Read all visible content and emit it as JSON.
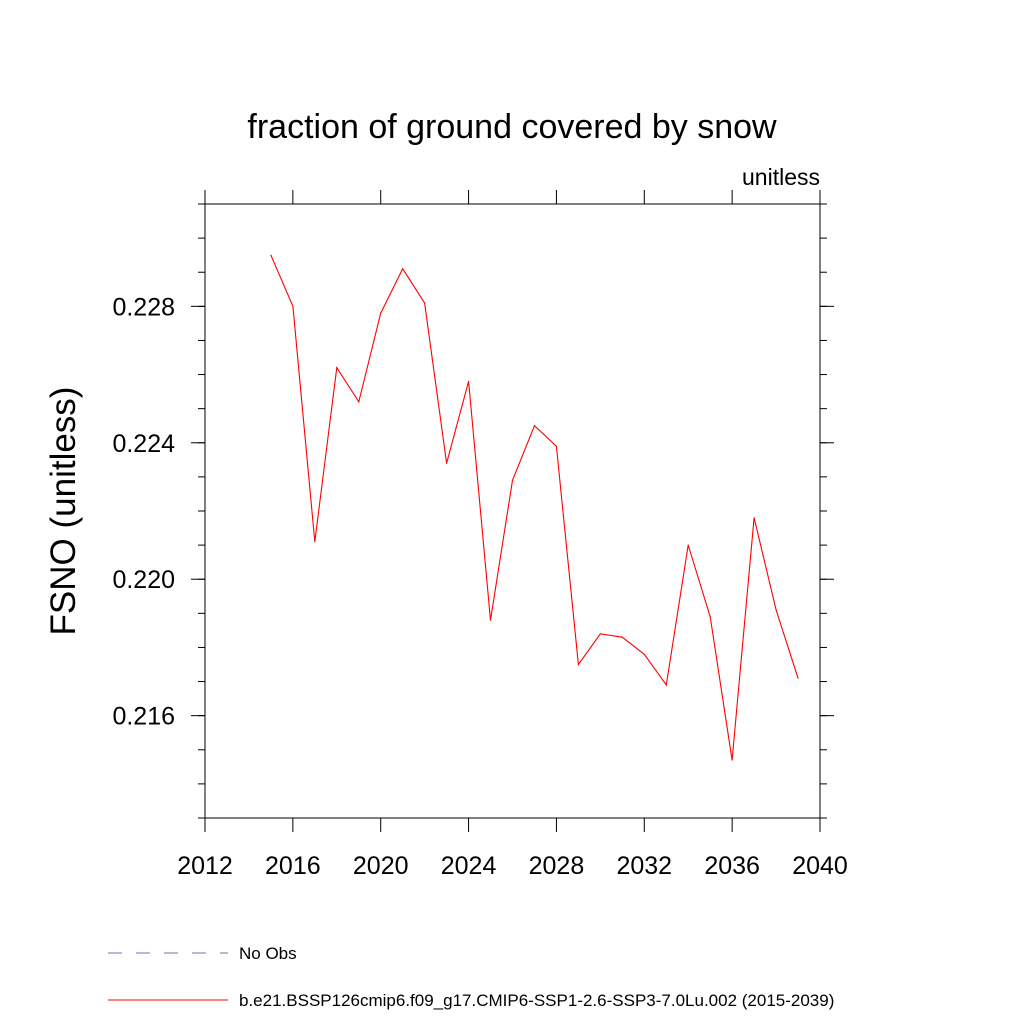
{
  "chart_data": {
    "type": "line",
    "title": "fraction of ground covered by snow",
    "units_label": "unitless",
    "ylabel": "FSNO  (unitless)",
    "xlabel": "",
    "xlim": [
      2012,
      2040
    ],
    "ylim": [
      0.213,
      0.231
    ],
    "x_ticks": [
      2012,
      2016,
      2020,
      2024,
      2028,
      2032,
      2036,
      2040
    ],
    "y_ticks": [
      0.216,
      0.22,
      0.224,
      0.228
    ],
    "y_tick_labels": [
      "0.216",
      "0.220",
      "0.224",
      "0.228"
    ],
    "grid": false,
    "legend_position": "bottom",
    "series": [
      {
        "name": "No Obs",
        "color": "#7a6fb0",
        "dash": "dashed",
        "x": [],
        "values": []
      },
      {
        "name": "b.e21.BSSP126cmip6.f09_g17.CMIP6-SSP1-2.6-SSP3-7.0Lu.002 (2015-2039)",
        "color": "#ff0000",
        "dash": "solid",
        "x": [
          2015,
          2016,
          2017,
          2018,
          2019,
          2020,
          2021,
          2022,
          2023,
          2024,
          2025,
          2026,
          2027,
          2028,
          2029,
          2030,
          2031,
          2032,
          2033,
          2034,
          2035,
          2036,
          2037,
          2038,
          2039
        ],
        "values": [
          0.2295,
          0.228,
          0.2211,
          0.2262,
          0.2252,
          0.2278,
          0.2291,
          0.2281,
          0.2234,
          0.2258,
          0.2188,
          0.2229,
          0.2245,
          0.2239,
          0.2175,
          0.2184,
          0.2183,
          0.2178,
          0.2169,
          0.221,
          0.2189,
          0.2147,
          0.2218,
          0.2191,
          0.2171
        ]
      }
    ]
  }
}
